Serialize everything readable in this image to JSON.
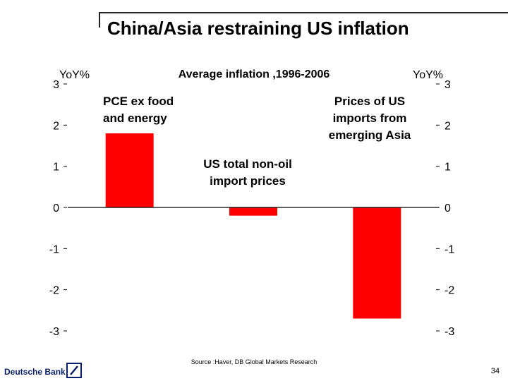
{
  "slide": {
    "title": "China/Asia restraining US inflation",
    "source": "Source :Haver, DB Global Markets Research",
    "brand": "Deutsche Bank",
    "page_number": "34"
  },
  "colors": {
    "bar": "#ff0000",
    "axis": "#000000",
    "text": "#000000",
    "brand": "#0a1f6b"
  },
  "chart_data": {
    "type": "bar",
    "title": "Average inflation ,1996-2006",
    "ylabel_left": "YoY%",
    "ylabel_right": "YoY%",
    "ylim": [
      -3,
      3
    ],
    "yticks": [
      3,
      2,
      1,
      0,
      -1,
      -2,
      -3
    ],
    "ytick_labels": [
      "3",
      "2",
      "1",
      "0",
      "-1",
      "-2",
      "-3"
    ],
    "categories": [
      "PCE ex food and energy",
      "US total non-oil import prices",
      "Prices of US imports from emerging Asia"
    ],
    "category_label_lines": [
      [
        "PCE ex food",
        "and energy"
      ],
      [
        "US total non-oil",
        "import prices"
      ],
      [
        "Prices of US",
        "imports from",
        "emerging Asia"
      ]
    ],
    "values": [
      1.8,
      -0.2,
      -2.7
    ]
  }
}
